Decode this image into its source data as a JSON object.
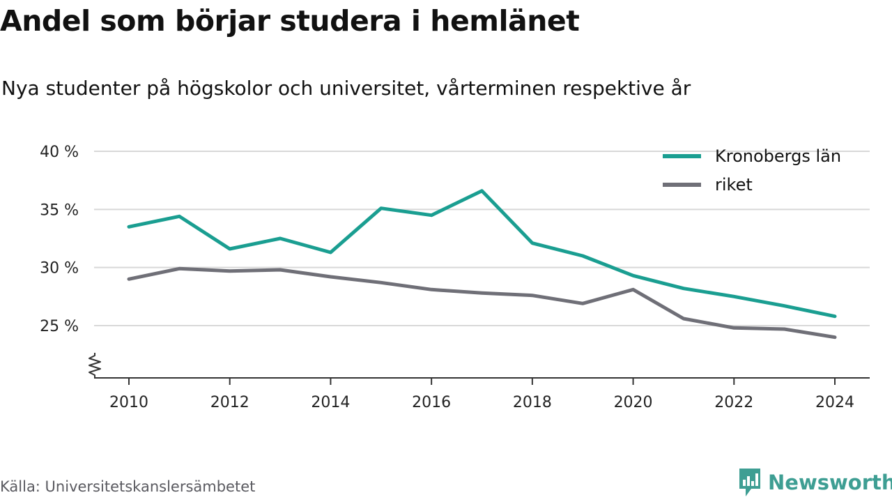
{
  "header": {
    "title": "Andel som börjar studera i hemlänet",
    "subtitle": "Nya studenter på högskolor och universitet, vårterminen respektive år"
  },
  "footer": {
    "source": "Källa: Universitetskanslersämbetet",
    "brand": "Newsworthy"
  },
  "colors": {
    "grid": "#d8d8d8",
    "axis": "#333333",
    "brand": "#3e9e93"
  },
  "chart_data": {
    "type": "line",
    "title": "Andel som börjar studera i hemlänet",
    "subtitle": "Nya studenter på högskolor och universitet, vårterminen respektive år",
    "x": [
      2010,
      2011,
      2012,
      2013,
      2014,
      2015,
      2016,
      2017,
      2018,
      2019,
      2020,
      2021,
      2022,
      2023,
      2024
    ],
    "x_ticks": [
      2010,
      2012,
      2014,
      2016,
      2018,
      2020,
      2022,
      2024
    ],
    "y_ticks": [
      25,
      30,
      35,
      40
    ],
    "y_tick_labels": [
      "25 %",
      "30 %",
      "35 %",
      "40 %"
    ],
    "ylim": [
      21.5,
      40
    ],
    "y_axis_break": true,
    "grid": true,
    "legend_position": "top-right",
    "xlabel": "",
    "ylabel": "",
    "series": [
      {
        "name": "Kronobergs län",
        "color": "#1a9e91",
        "values": [
          33.5,
          34.4,
          31.6,
          32.5,
          31.3,
          35.1,
          34.5,
          36.6,
          32.1,
          31.0,
          29.3,
          28.2,
          27.5,
          26.7,
          25.8
        ]
      },
      {
        "name": "riket",
        "color": "#6f6f77",
        "values": [
          29.0,
          29.9,
          29.7,
          29.8,
          29.2,
          28.7,
          28.1,
          27.8,
          27.6,
          26.9,
          28.1,
          25.6,
          24.8,
          24.7,
          24.0
        ]
      }
    ]
  }
}
